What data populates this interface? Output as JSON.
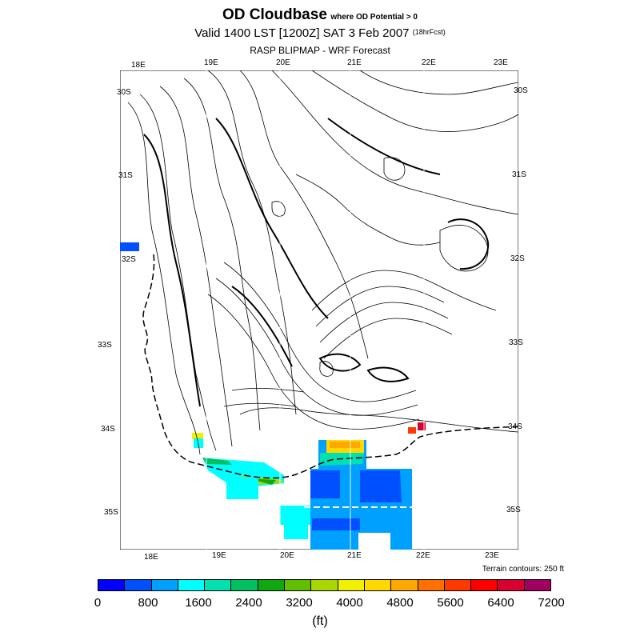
{
  "title": {
    "main": "OD Cloudbase",
    "condition": "where OD Potential > 0",
    "valid": "Valid 1400 LST [1200Z] SAT 3 Feb 2007",
    "forecast": "(18hrFcst)",
    "model": "RASP BLIPMAP - WRF Forecast"
  },
  "map": {
    "lon_labels_top": [
      "18E",
      "19E",
      "20E",
      "21E",
      "22E",
      "23E"
    ],
    "lon_labels_bottom": [
      "18E",
      "19E",
      "20E",
      "21E",
      "22E",
      "23E"
    ],
    "lat_labels_left": [
      "30S",
      "31S",
      "32S",
      "33S",
      "34S",
      "35S"
    ],
    "lat_labels_right": [
      "30S",
      "31S",
      "32S",
      "33S",
      "34S",
      "35S"
    ],
    "terrain_note": "Terrain contours: 250 ft"
  },
  "colorbar": {
    "colors": [
      "#0000ff",
      "#0050ff",
      "#00a0ff",
      "#00ffff",
      "#00e0b0",
      "#00c060",
      "#10a810",
      "#60c000",
      "#a8d800",
      "#f0f000",
      "#ffd800",
      "#ffa800",
      "#ff7000",
      "#ff3800",
      "#ff0000",
      "#d80030",
      "#a00060"
    ],
    "tick_labels": [
      "0",
      "800",
      "1600",
      "2400",
      "3200",
      "4000",
      "4800",
      "5600",
      "6400",
      "7200"
    ],
    "units": "(ft)"
  }
}
